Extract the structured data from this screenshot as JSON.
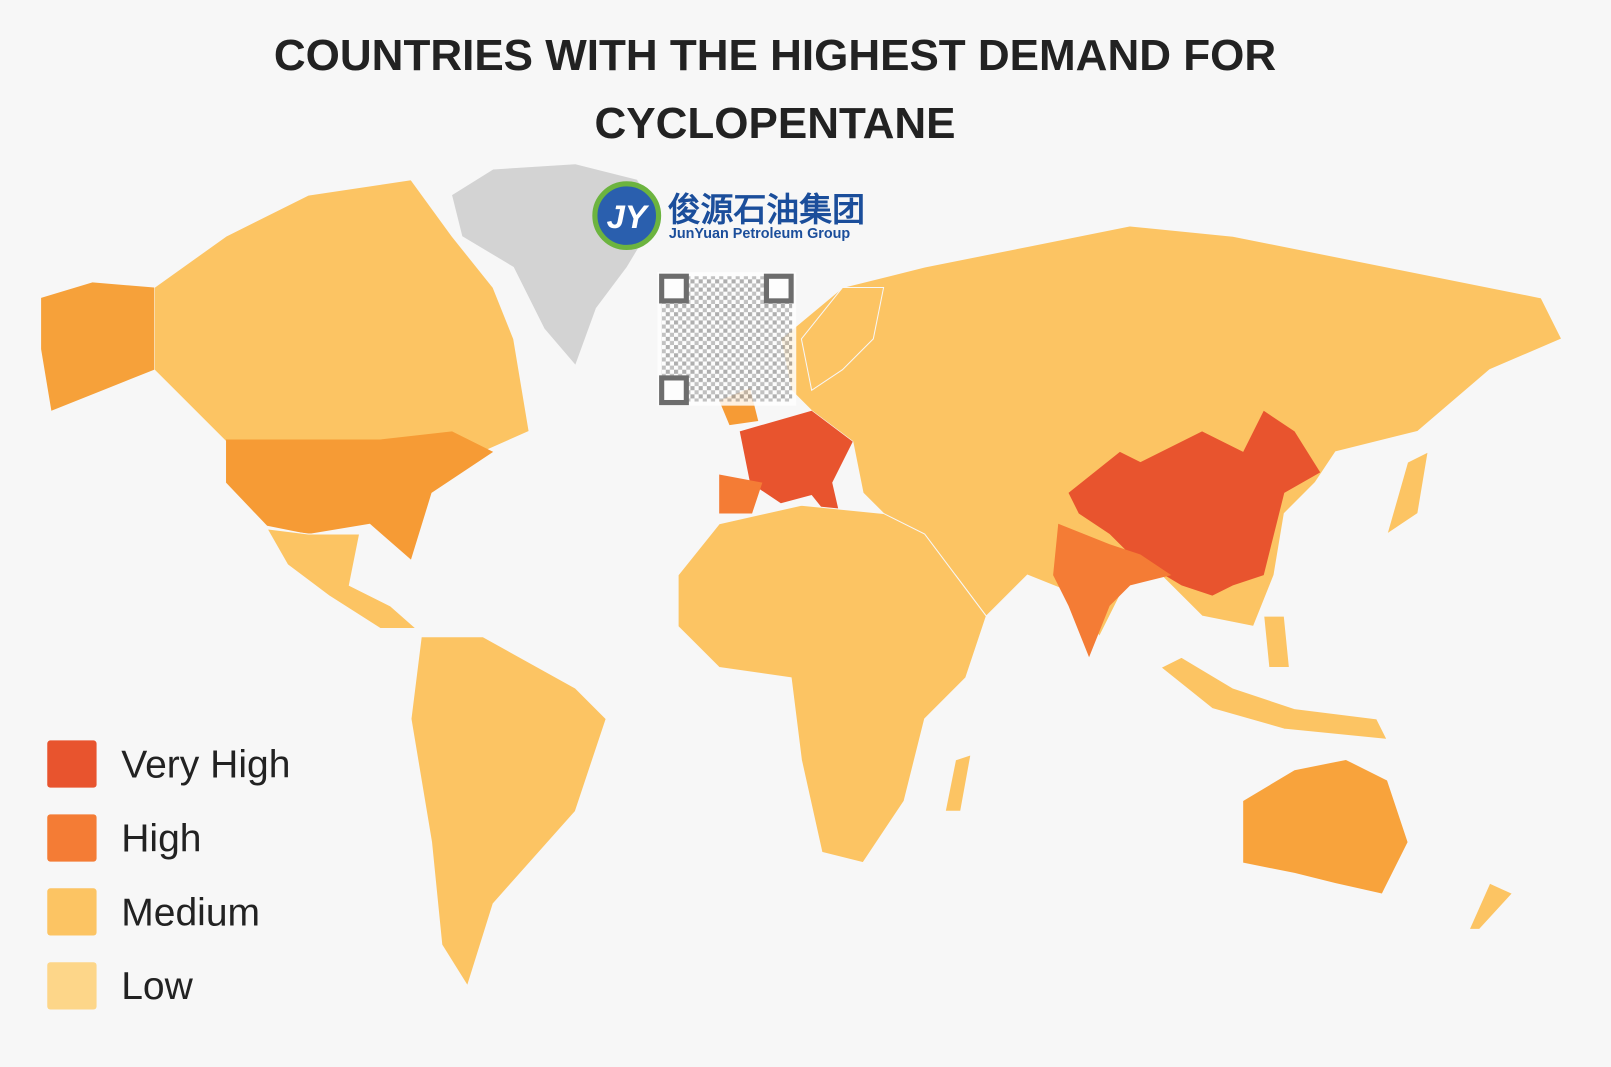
{
  "title": "COUNTRIES WITH THE HIGHEST DEMAND FOR CYCLOPENTANE",
  "logo": {
    "initials": "JY",
    "name_cn": "俊源石油集团",
    "name_en": "JunYuan Petroleum Group"
  },
  "legend": {
    "items": [
      {
        "label": "Very High",
        "color": "#e8542e"
      },
      {
        "label": "High",
        "color": "#f47c35"
      },
      {
        "label": "Medium",
        "color": "#fcc463"
      },
      {
        "label": "Low",
        "color": "#fdd689"
      }
    ]
  }
}
